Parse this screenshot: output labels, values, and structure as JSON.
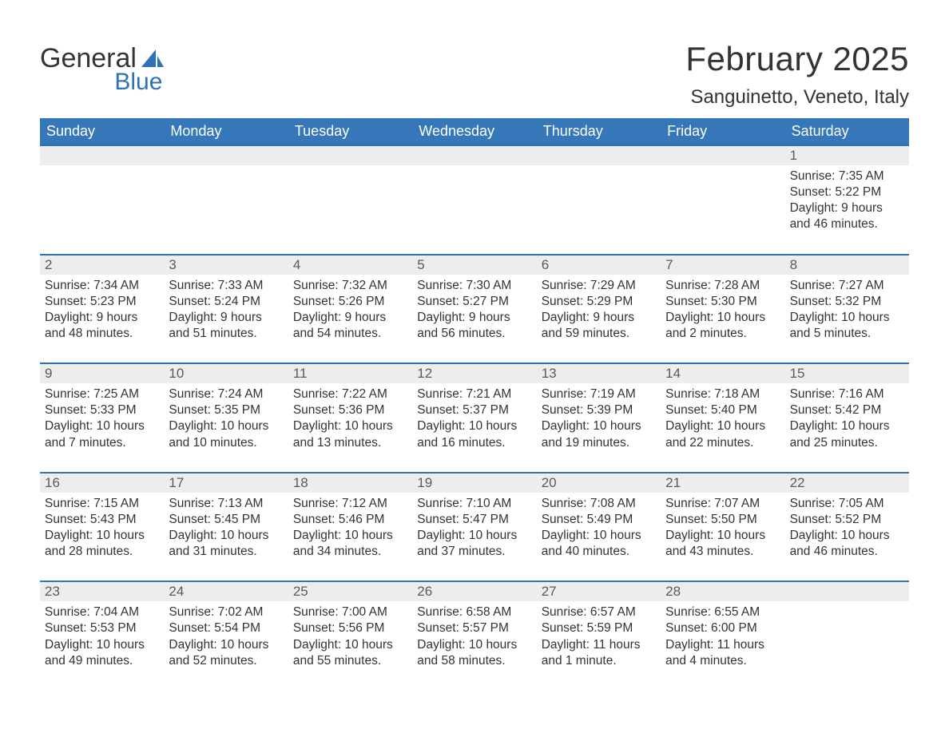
{
  "brand": {
    "name_gray": "General",
    "name_blue": "Blue"
  },
  "title": "February 2025",
  "location": "Sanguinetto, Veneto, Italy",
  "colors": {
    "header_bg": "#3577b8",
    "header_text": "#ffffff",
    "week_border": "#2f72b6",
    "daynum_bg": "#ededed",
    "text": "#333333",
    "logo_blue": "#2f72b6"
  },
  "weekdays": [
    "Sunday",
    "Monday",
    "Tuesday",
    "Wednesday",
    "Thursday",
    "Friday",
    "Saturday"
  ],
  "weeks": [
    [
      {
        "n": "",
        "sunrise": "",
        "sunset": "",
        "daylight": ""
      },
      {
        "n": "",
        "sunrise": "",
        "sunset": "",
        "daylight": ""
      },
      {
        "n": "",
        "sunrise": "",
        "sunset": "",
        "daylight": ""
      },
      {
        "n": "",
        "sunrise": "",
        "sunset": "",
        "daylight": ""
      },
      {
        "n": "",
        "sunrise": "",
        "sunset": "",
        "daylight": ""
      },
      {
        "n": "",
        "sunrise": "",
        "sunset": "",
        "daylight": ""
      },
      {
        "n": "1",
        "sunrise": "Sunrise: 7:35 AM",
        "sunset": "Sunset: 5:22 PM",
        "daylight": "Daylight: 9 hours and 46 minutes."
      }
    ],
    [
      {
        "n": "2",
        "sunrise": "Sunrise: 7:34 AM",
        "sunset": "Sunset: 5:23 PM",
        "daylight": "Daylight: 9 hours and 48 minutes."
      },
      {
        "n": "3",
        "sunrise": "Sunrise: 7:33 AM",
        "sunset": "Sunset: 5:24 PM",
        "daylight": "Daylight: 9 hours and 51 minutes."
      },
      {
        "n": "4",
        "sunrise": "Sunrise: 7:32 AM",
        "sunset": "Sunset: 5:26 PM",
        "daylight": "Daylight: 9 hours and 54 minutes."
      },
      {
        "n": "5",
        "sunrise": "Sunrise: 7:30 AM",
        "sunset": "Sunset: 5:27 PM",
        "daylight": "Daylight: 9 hours and 56 minutes."
      },
      {
        "n": "6",
        "sunrise": "Sunrise: 7:29 AM",
        "sunset": "Sunset: 5:29 PM",
        "daylight": "Daylight: 9 hours and 59 minutes."
      },
      {
        "n": "7",
        "sunrise": "Sunrise: 7:28 AM",
        "sunset": "Sunset: 5:30 PM",
        "daylight": "Daylight: 10 hours and 2 minutes."
      },
      {
        "n": "8",
        "sunrise": "Sunrise: 7:27 AM",
        "sunset": "Sunset: 5:32 PM",
        "daylight": "Daylight: 10 hours and 5 minutes."
      }
    ],
    [
      {
        "n": "9",
        "sunrise": "Sunrise: 7:25 AM",
        "sunset": "Sunset: 5:33 PM",
        "daylight": "Daylight: 10 hours and 7 minutes."
      },
      {
        "n": "10",
        "sunrise": "Sunrise: 7:24 AM",
        "sunset": "Sunset: 5:35 PM",
        "daylight": "Daylight: 10 hours and 10 minutes."
      },
      {
        "n": "11",
        "sunrise": "Sunrise: 7:22 AM",
        "sunset": "Sunset: 5:36 PM",
        "daylight": "Daylight: 10 hours and 13 minutes."
      },
      {
        "n": "12",
        "sunrise": "Sunrise: 7:21 AM",
        "sunset": "Sunset: 5:37 PM",
        "daylight": "Daylight: 10 hours and 16 minutes."
      },
      {
        "n": "13",
        "sunrise": "Sunrise: 7:19 AM",
        "sunset": "Sunset: 5:39 PM",
        "daylight": "Daylight: 10 hours and 19 minutes."
      },
      {
        "n": "14",
        "sunrise": "Sunrise: 7:18 AM",
        "sunset": "Sunset: 5:40 PM",
        "daylight": "Daylight: 10 hours and 22 minutes."
      },
      {
        "n": "15",
        "sunrise": "Sunrise: 7:16 AM",
        "sunset": "Sunset: 5:42 PM",
        "daylight": "Daylight: 10 hours and 25 minutes."
      }
    ],
    [
      {
        "n": "16",
        "sunrise": "Sunrise: 7:15 AM",
        "sunset": "Sunset: 5:43 PM",
        "daylight": "Daylight: 10 hours and 28 minutes."
      },
      {
        "n": "17",
        "sunrise": "Sunrise: 7:13 AM",
        "sunset": "Sunset: 5:45 PM",
        "daylight": "Daylight: 10 hours and 31 minutes."
      },
      {
        "n": "18",
        "sunrise": "Sunrise: 7:12 AM",
        "sunset": "Sunset: 5:46 PM",
        "daylight": "Daylight: 10 hours and 34 minutes."
      },
      {
        "n": "19",
        "sunrise": "Sunrise: 7:10 AM",
        "sunset": "Sunset: 5:47 PM",
        "daylight": "Daylight: 10 hours and 37 minutes."
      },
      {
        "n": "20",
        "sunrise": "Sunrise: 7:08 AM",
        "sunset": "Sunset: 5:49 PM",
        "daylight": "Daylight: 10 hours and 40 minutes."
      },
      {
        "n": "21",
        "sunrise": "Sunrise: 7:07 AM",
        "sunset": "Sunset: 5:50 PM",
        "daylight": "Daylight: 10 hours and 43 minutes."
      },
      {
        "n": "22",
        "sunrise": "Sunrise: 7:05 AM",
        "sunset": "Sunset: 5:52 PM",
        "daylight": "Daylight: 10 hours and 46 minutes."
      }
    ],
    [
      {
        "n": "23",
        "sunrise": "Sunrise: 7:04 AM",
        "sunset": "Sunset: 5:53 PM",
        "daylight": "Daylight: 10 hours and 49 minutes."
      },
      {
        "n": "24",
        "sunrise": "Sunrise: 7:02 AM",
        "sunset": "Sunset: 5:54 PM",
        "daylight": "Daylight: 10 hours and 52 minutes."
      },
      {
        "n": "25",
        "sunrise": "Sunrise: 7:00 AM",
        "sunset": "Sunset: 5:56 PM",
        "daylight": "Daylight: 10 hours and 55 minutes."
      },
      {
        "n": "26",
        "sunrise": "Sunrise: 6:58 AM",
        "sunset": "Sunset: 5:57 PM",
        "daylight": "Daylight: 10 hours and 58 minutes."
      },
      {
        "n": "27",
        "sunrise": "Sunrise: 6:57 AM",
        "sunset": "Sunset: 5:59 PM",
        "daylight": "Daylight: 11 hours and 1 minute."
      },
      {
        "n": "28",
        "sunrise": "Sunrise: 6:55 AM",
        "sunset": "Sunset: 6:00 PM",
        "daylight": "Daylight: 11 hours and 4 minutes."
      },
      {
        "n": "",
        "sunrise": "",
        "sunset": "",
        "daylight": ""
      }
    ]
  ]
}
